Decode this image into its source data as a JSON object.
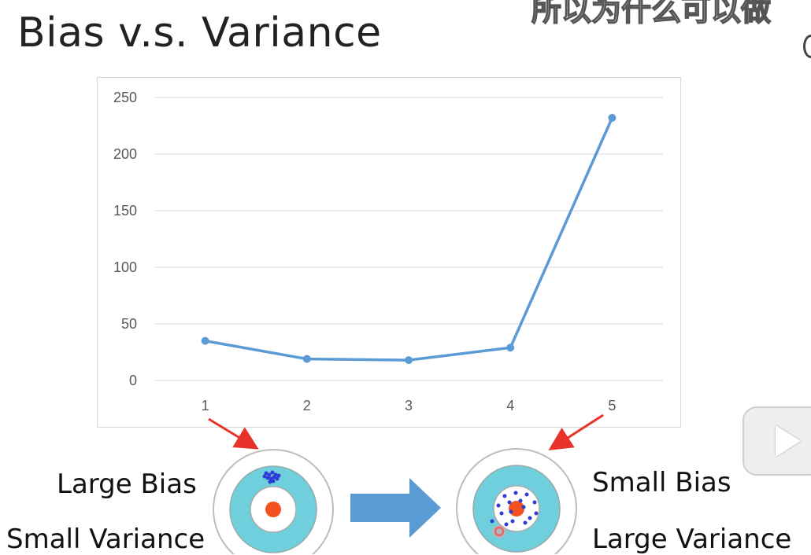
{
  "slide": {
    "title": "Bias v.s. Variance",
    "subtitle_overlay": "所以为什么可以做"
  },
  "chart_data": {
    "type": "line",
    "categories": [
      "1",
      "2",
      "3",
      "4",
      "5"
    ],
    "series": [
      {
        "values": [
          35,
          19,
          18,
          29,
          232
        ],
        "color": "#5b9bd5"
      }
    ],
    "y_ticks": [
      "0",
      "50",
      "100",
      "150",
      "200",
      "250"
    ],
    "ylim": [
      0,
      250
    ],
    "grid": true,
    "title": "",
    "xlabel": "",
    "ylabel": ""
  },
  "left_target": {
    "label_bias": "Large Bias",
    "label_variance": "Small Variance"
  },
  "right_target": {
    "label_bias": "Small Bias",
    "label_variance": "Large Variance"
  },
  "colors": {
    "line": "#5b9bd5",
    "arrow_red": "#e8332a",
    "big_arrow": "#5b9bd5",
    "target_ring": "#6fcfdc",
    "bullseye": "#f4511e",
    "dots": "#2f3bd6"
  },
  "icons": [
    "arrow-right-icon",
    "play-icon"
  ]
}
